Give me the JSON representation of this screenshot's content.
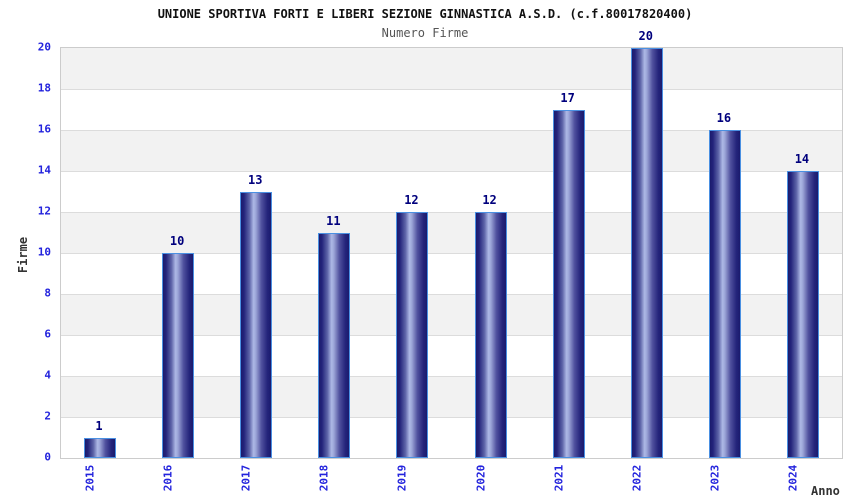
{
  "header": {
    "title": "UNIONE SPORTIVA FORTI E LIBERI SEZIONE GINNASTICA A.S.D. (c.f.80017820400)",
    "subtitle": "Numero Firme"
  },
  "chart_data": {
    "type": "bar",
    "title": "UNIONE SPORTIVA FORTI E LIBERI SEZIONE GINNASTICA A.S.D. (c.f.80017820400)",
    "subtitle": "Numero Firme",
    "categories": [
      "2015",
      "2016",
      "2017",
      "2018",
      "2019",
      "2020",
      "2021",
      "2022",
      "2023",
      "2024"
    ],
    "values": [
      1,
      10,
      13,
      11,
      12,
      12,
      17,
      20,
      16,
      14
    ],
    "xlabel": "Anno",
    "ylabel": "Firme",
    "ylim": [
      0,
      20
    ],
    "ytick_step": 2,
    "ytick_labels": [
      "0",
      "2",
      "4",
      "6",
      "8",
      "10",
      "12",
      "14",
      "16",
      "18",
      "20"
    ],
    "legend": "none",
    "grid": "horizontal-bands",
    "colors": {
      "bar_dark": "#1b1b6d",
      "bar_light": "#aeb9e6",
      "bar_border": "#4a90e2",
      "value_label": "#00007d",
      "tick_label": "#2323dd",
      "axis_title": "#333333",
      "band_gray": "#f2f2f2",
      "band_white": "#ffffff",
      "gridline": "#dcdcdc",
      "plot_border": "#cccccc",
      "title_color": "#111111",
      "subtitle_color": "#555555"
    }
  }
}
